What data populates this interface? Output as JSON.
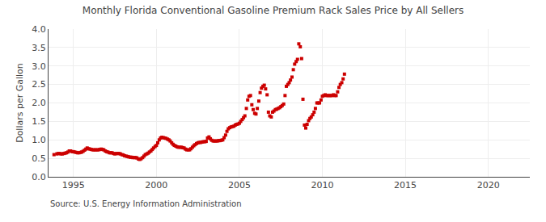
{
  "chart_data": {
    "type": "scatter",
    "title": "Monthly Florida Conventional Gasoline Premium Rack Sales Price by All Sellers",
    "y_label": "Dollars per Gallon",
    "annotations": [
      "Source: U.S. Energy Information Administration"
    ],
    "color": "#cc0000",
    "marker": "square",
    "grid": true,
    "xlim": [
      1993.5,
      2022.5
    ],
    "ylim": [
      0.0,
      4.0
    ],
    "xticks": [
      1995,
      2000,
      2005,
      2010,
      2015,
      2020
    ],
    "yticks": [
      {
        "value": 0.0,
        "label": "0.0"
      },
      0.5,
      {
        "value": 1.0,
        "label": "1.0"
      },
      1.5,
      {
        "value": 2.0,
        "label": "2.0"
      },
      2.5,
      {
        "value": 3.0,
        "label": "3.0"
      },
      3.5,
      {
        "value": 4.0,
        "label": "4.0"
      }
    ],
    "x": [
      1993.83,
      1994.0,
      1994.08,
      1994.17,
      1994.25,
      1994.33,
      1994.42,
      1994.5,
      1994.58,
      1994.67,
      1994.75,
      1994.83,
      1994.92,
      1995.0,
      1995.08,
      1995.17,
      1995.25,
      1995.33,
      1995.42,
      1995.5,
      1995.58,
      1995.67,
      1995.75,
      1995.83,
      1995.92,
      1996.0,
      1996.08,
      1996.17,
      1996.25,
      1996.33,
      1996.42,
      1996.5,
      1996.58,
      1996.67,
      1996.75,
      1996.83,
      1996.92,
      1997.0,
      1997.08,
      1997.17,
      1997.25,
      1997.33,
      1997.42,
      1997.5,
      1997.58,
      1997.67,
      1997.75,
      1997.83,
      1997.92,
      1998.0,
      1998.08,
      1998.17,
      1998.25,
      1998.33,
      1998.42,
      1998.5,
      1998.58,
      1998.67,
      1998.75,
      1998.83,
      1998.92,
      1999.0,
      1999.08,
      1999.17,
      1999.25,
      1999.33,
      1999.42,
      1999.5,
      1999.58,
      1999.67,
      1999.75,
      1999.83,
      1999.92,
      2000.0,
      2000.08,
      2000.17,
      2000.25,
      2000.33,
      2000.42,
      2000.5,
      2000.58,
      2000.67,
      2000.75,
      2000.83,
      2000.92,
      2001.0,
      2001.08,
      2001.17,
      2001.25,
      2001.33,
      2001.42,
      2001.5,
      2001.58,
      2001.67,
      2001.75,
      2001.83,
      2001.92,
      2002.0,
      2002.08,
      2002.17,
      2002.25,
      2002.33,
      2002.42,
      2002.5,
      2002.58,
      2002.67,
      2002.75,
      2002.83,
      2002.92,
      2003.0,
      2003.08,
      2003.17,
      2003.25,
      2003.33,
      2003.42,
      2003.5,
      2003.58,
      2003.67,
      2003.75,
      2003.83,
      2003.92,
      2004.0,
      2004.08,
      2004.17,
      2004.25,
      2004.33,
      2004.42,
      2004.5,
      2004.58,
      2004.67,
      2004.75,
      2004.83,
      2004.92,
      2005.0,
      2005.08,
      2005.17,
      2005.25,
      2005.33,
      2005.42,
      2005.5,
      2005.58,
      2005.67,
      2005.75,
      2005.83,
      2005.92,
      2006.0,
      2006.08,
      2006.17,
      2006.25,
      2006.33,
      2006.42,
      2006.5,
      2006.58,
      2006.67,
      2006.75,
      2006.83,
      2006.92,
      2007.0,
      2007.08,
      2007.17,
      2007.25,
      2007.33,
      2007.42,
      2007.5,
      2007.58,
      2007.67,
      2007.75,
      2007.83,
      2007.92,
      2008.0,
      2008.08,
      2008.17,
      2008.25,
      2008.33,
      2008.42,
      2008.5,
      2008.58,
      2008.67,
      2008.75,
      2008.83,
      2008.92,
      2009.0,
      2009.08,
      2009.17,
      2009.25,
      2009.33,
      2009.42,
      2009.5,
      2009.58,
      2009.67,
      2009.75,
      2009.83,
      2009.92,
      2010.0,
      2010.08,
      2010.17,
      2010.25,
      2010.33,
      2010.42,
      2010.5,
      2010.58,
      2010.67,
      2010.75,
      2010.83,
      2010.92,
      2011.0,
      2011.08,
      2011.17,
      2011.25,
      2011.33
    ],
    "values": [
      0.6,
      0.62,
      0.63,
      0.63,
      0.62,
      0.62,
      0.63,
      0.64,
      0.65,
      0.67,
      0.7,
      0.7,
      0.68,
      0.68,
      0.67,
      0.66,
      0.65,
      0.65,
      0.66,
      0.67,
      0.69,
      0.72,
      0.75,
      0.78,
      0.76,
      0.75,
      0.74,
      0.73,
      0.73,
      0.73,
      0.73,
      0.73,
      0.74,
      0.75,
      0.74,
      0.73,
      0.7,
      0.68,
      0.67,
      0.65,
      0.65,
      0.65,
      0.63,
      0.62,
      0.63,
      0.63,
      0.63,
      0.62,
      0.6,
      0.59,
      0.57,
      0.56,
      0.55,
      0.54,
      0.53,
      0.53,
      0.52,
      0.52,
      0.52,
      0.51,
      0.48,
      0.47,
      0.49,
      0.52,
      0.56,
      0.6,
      0.62,
      0.64,
      0.67,
      0.7,
      0.74,
      0.78,
      0.82,
      0.85,
      0.92,
      1.0,
      1.05,
      1.07,
      1.06,
      1.05,
      1.04,
      1.02,
      1.0,
      0.97,
      0.92,
      0.88,
      0.85,
      0.83,
      0.81,
      0.8,
      0.8,
      0.8,
      0.79,
      0.78,
      0.75,
      0.73,
      0.73,
      0.73,
      0.76,
      0.8,
      0.84,
      0.87,
      0.9,
      0.92,
      0.93,
      0.93,
      0.94,
      0.95,
      0.95,
      0.96,
      1.05,
      1.08,
      1.03,
      0.99,
      0.97,
      0.97,
      0.97,
      0.97,
      0.98,
      0.98,
      0.99,
      1.0,
      1.06,
      1.13,
      1.23,
      1.3,
      1.33,
      1.35,
      1.36,
      1.37,
      1.4,
      1.42,
      1.43,
      1.45,
      1.5,
      1.55,
      1.6,
      1.65,
      1.85,
      2.08,
      2.18,
      2.2,
      1.95,
      1.82,
      1.72,
      1.7,
      1.85,
      2.05,
      2.28,
      2.4,
      2.45,
      2.48,
      2.38,
      2.22,
      1.75,
      1.65,
      1.62,
      1.75,
      1.78,
      1.82,
      1.83,
      1.85,
      1.87,
      1.9,
      1.93,
      1.97,
      2.2,
      2.45,
      2.5,
      2.55,
      2.62,
      2.7,
      2.9,
      3.05,
      3.12,
      3.18,
      3.6,
      3.52,
      3.2,
      2.1,
      1.4,
      1.32,
      1.42,
      1.52,
      1.58,
      1.62,
      1.68,
      1.75,
      1.85,
      2.0,
      2.0,
      2.0,
      2.08,
      2.18,
      2.2,
      2.22,
      2.2,
      2.2,
      2.2,
      2.2,
      2.2,
      2.22,
      2.2,
      2.2,
      2.3,
      2.42,
      2.5,
      2.55,
      2.65,
      2.78
    ]
  }
}
